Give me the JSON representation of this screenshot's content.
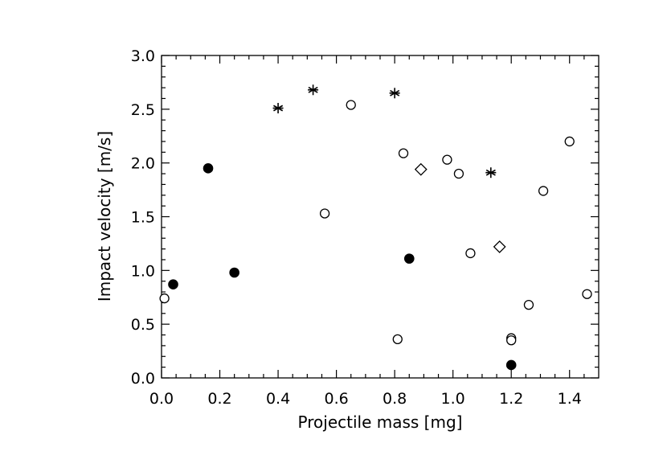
{
  "chart_data": {
    "type": "scatter",
    "title": "",
    "xlabel": "Projectile mass [mg]",
    "ylabel": "Impact velocity [m/s]",
    "xlim": [
      0.0,
      1.5
    ],
    "ylim": [
      0.0,
      3.0
    ],
    "xticks": [
      "0.0",
      "0.2",
      "0.4",
      "0.6",
      "0.8",
      "1.0",
      "1.2",
      "1.4"
    ],
    "yticks": [
      "0.0",
      "0.5",
      "1.0",
      "1.5",
      "2.0",
      "2.5",
      "3.0"
    ],
    "grid": false,
    "series": [
      {
        "name": "open-circle",
        "marker": "circle-open",
        "points": [
          {
            "x": 0.01,
            "y": 0.74
          },
          {
            "x": 0.56,
            "y": 1.53
          },
          {
            "x": 0.65,
            "y": 2.54
          },
          {
            "x": 0.81,
            "y": 0.36
          },
          {
            "x": 0.83,
            "y": 2.09
          },
          {
            "x": 0.98,
            "y": 2.03
          },
          {
            "x": 1.02,
            "y": 1.9
          },
          {
            "x": 1.06,
            "y": 1.16
          },
          {
            "x": 1.2,
            "y": 0.37
          },
          {
            "x": 1.2,
            "y": 0.35
          },
          {
            "x": 1.26,
            "y": 0.68
          },
          {
            "x": 1.31,
            "y": 1.74
          },
          {
            "x": 1.4,
            "y": 2.2
          },
          {
            "x": 1.46,
            "y": 0.78
          }
        ]
      },
      {
        "name": "filled-circle",
        "marker": "circle-filled",
        "points": [
          {
            "x": 0.04,
            "y": 0.87
          },
          {
            "x": 0.16,
            "y": 1.95
          },
          {
            "x": 0.25,
            "y": 0.98
          },
          {
            "x": 0.85,
            "y": 1.11
          },
          {
            "x": 1.2,
            "y": 0.12
          }
        ]
      },
      {
        "name": "asterisk",
        "marker": "asterisk",
        "points": [
          {
            "x": 0.4,
            "y": 2.51
          },
          {
            "x": 0.52,
            "y": 2.68
          },
          {
            "x": 0.8,
            "y": 2.65
          },
          {
            "x": 1.13,
            "y": 1.91
          }
        ]
      },
      {
        "name": "diamond",
        "marker": "diamond-open",
        "points": [
          {
            "x": 0.89,
            "y": 1.94
          },
          {
            "x": 1.16,
            "y": 1.22
          }
        ]
      }
    ]
  }
}
